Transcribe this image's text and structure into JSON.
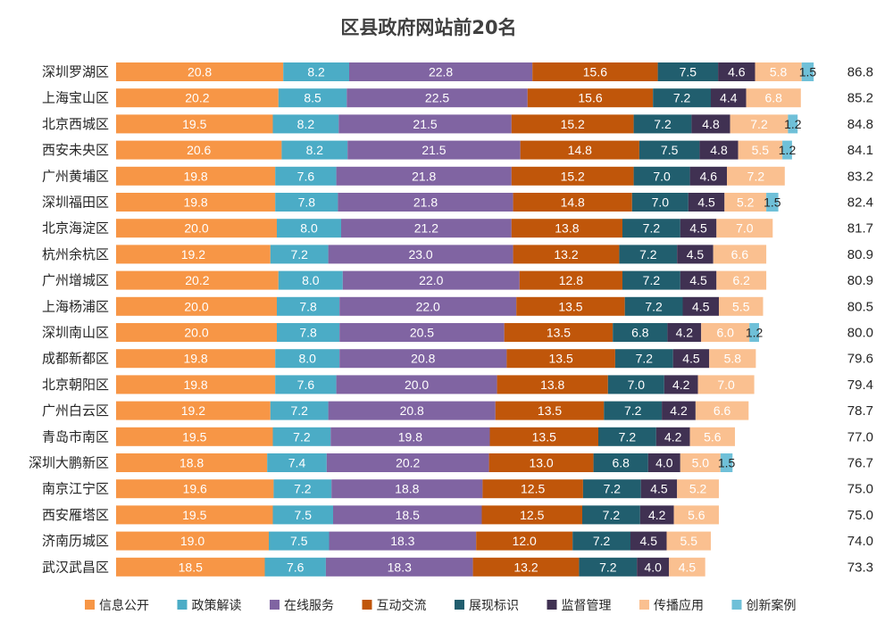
{
  "chart_data": {
    "type": "bar",
    "orientation": "horizontal",
    "stacked": true,
    "title": "区县政府网站前20名",
    "categories": [
      "深圳罗湖区",
      "上海宝山区",
      "北京西城区",
      "西安未央区",
      "广州黄埔区",
      "深圳福田区",
      "北京海淀区",
      "杭州余杭区",
      "广州增城区",
      "上海杨浦区",
      "深圳南山区",
      "成都新都区",
      "北京朝阳区",
      "广州白云区",
      "青岛市南区",
      "深圳大鹏新区",
      "南京江宁区",
      "西安雁塔区",
      "济南历城区",
      "武汉武昌区"
    ],
    "totals": [
      "86.8",
      "85.2",
      "84.8",
      "84.1",
      "83.2",
      "82.4",
      "81.7",
      "80.9",
      "80.9",
      "80.5",
      "80.0",
      "79.6",
      "79.4",
      "78.7",
      "77.0",
      "76.7",
      "75.0",
      "75.0",
      "74.0",
      "73.3"
    ],
    "series": [
      {
        "name": "信息公开",
        "color": "#F79646",
        "values": [
          20.8,
          20.2,
          19.5,
          20.6,
          19.8,
          19.8,
          20.0,
          19.2,
          20.2,
          20.0,
          20.0,
          19.8,
          19.8,
          19.2,
          19.5,
          18.8,
          19.6,
          19.5,
          19.0,
          18.5
        ]
      },
      {
        "name": "政策解读",
        "color": "#4BACC6",
        "values": [
          8.2,
          8.5,
          8.2,
          8.2,
          7.6,
          7.8,
          8.0,
          7.2,
          8.0,
          7.8,
          7.8,
          8.0,
          7.6,
          7.2,
          7.2,
          7.4,
          7.2,
          7.5,
          7.5,
          7.6
        ]
      },
      {
        "name": "在线服务",
        "color": "#8064A2",
        "values": [
          22.8,
          22.5,
          21.5,
          21.5,
          21.8,
          21.8,
          21.2,
          23.0,
          22.0,
          22.0,
          20.5,
          20.8,
          20.0,
          20.8,
          19.8,
          20.2,
          18.8,
          18.5,
          18.3,
          18.3
        ]
      },
      {
        "name": "互动交流",
        "color": "#C0560A",
        "values": [
          15.6,
          15.6,
          15.2,
          14.8,
          15.2,
          14.8,
          13.8,
          13.2,
          12.8,
          13.5,
          13.5,
          13.5,
          13.8,
          13.5,
          13.5,
          13.0,
          12.5,
          12.5,
          12.0,
          13.2
        ]
      },
      {
        "name": "展现标识",
        "color": "#215E6E",
        "values": [
          7.5,
          7.2,
          7.2,
          7.5,
          7.0,
          7.0,
          7.2,
          7.2,
          7.2,
          7.2,
          6.8,
          7.2,
          7.0,
          7.2,
          7.2,
          6.8,
          7.2,
          7.2,
          7.2,
          7.2
        ]
      },
      {
        "name": "监督管理",
        "color": "#403152",
        "values": [
          4.6,
          4.4,
          4.8,
          4.8,
          4.6,
          4.5,
          4.5,
          4.5,
          4.5,
          4.5,
          4.2,
          4.5,
          4.2,
          4.2,
          4.2,
          4.0,
          4.5,
          4.2,
          4.5,
          4.0
        ]
      },
      {
        "name": "传播应用",
        "color": "#FAC090",
        "values": [
          5.8,
          6.8,
          7.2,
          5.5,
          7.2,
          5.2,
          7.0,
          6.6,
          6.2,
          5.5,
          6.0,
          5.8,
          7.0,
          6.6,
          5.6,
          5.0,
          5.2,
          5.6,
          5.5,
          4.5
        ]
      },
      {
        "name": "创新案例",
        "color": "#6FC0D8",
        "values": [
          1.5,
          null,
          1.2,
          1.2,
          null,
          1.5,
          null,
          null,
          null,
          null,
          1.2,
          null,
          null,
          null,
          null,
          1.5,
          null,
          null,
          null,
          null
        ]
      }
    ],
    "label_format": "one_decimal",
    "dark_label_series": [
      "创新案例"
    ],
    "xlim": [
      0,
      100
    ],
    "grid": false,
    "legend_position": "bottom"
  }
}
